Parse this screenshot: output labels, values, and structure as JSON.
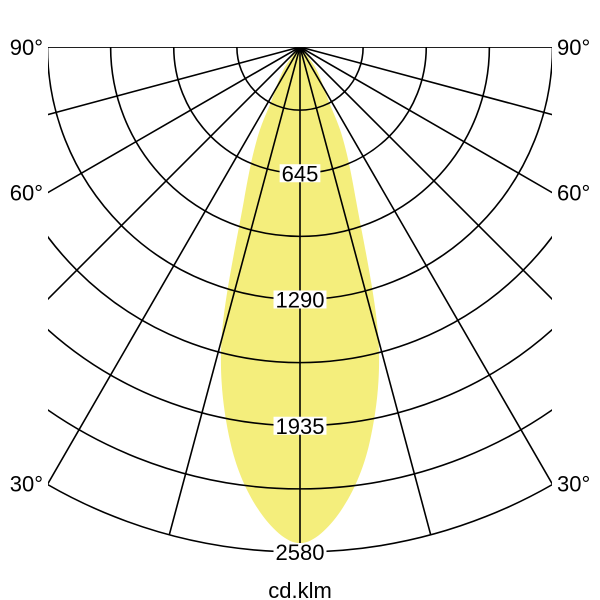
{
  "chart_data": {
    "type": "polar",
    "unit_label": "cd.klm",
    "radial_ticks": [
      645,
      1290,
      1935,
      2580
    ],
    "radial_max": 2580,
    "ring_step": 322.5,
    "angle_step_deg": 15,
    "angle_labels": [
      "90°",
      "60°",
      "30°"
    ],
    "angle_label_values": [
      90,
      60,
      30
    ],
    "fill_color": "#f4ee7c",
    "grid_color": "#000000",
    "series": [
      {
        "angles_deg": [
          0,
          5,
          10,
          15,
          20,
          25,
          28,
          35,
          40,
          45
        ],
        "values": [
          2535,
          2380,
          2050,
          1550,
          840,
          520,
          310,
          160,
          60,
          0
        ]
      }
    ]
  }
}
